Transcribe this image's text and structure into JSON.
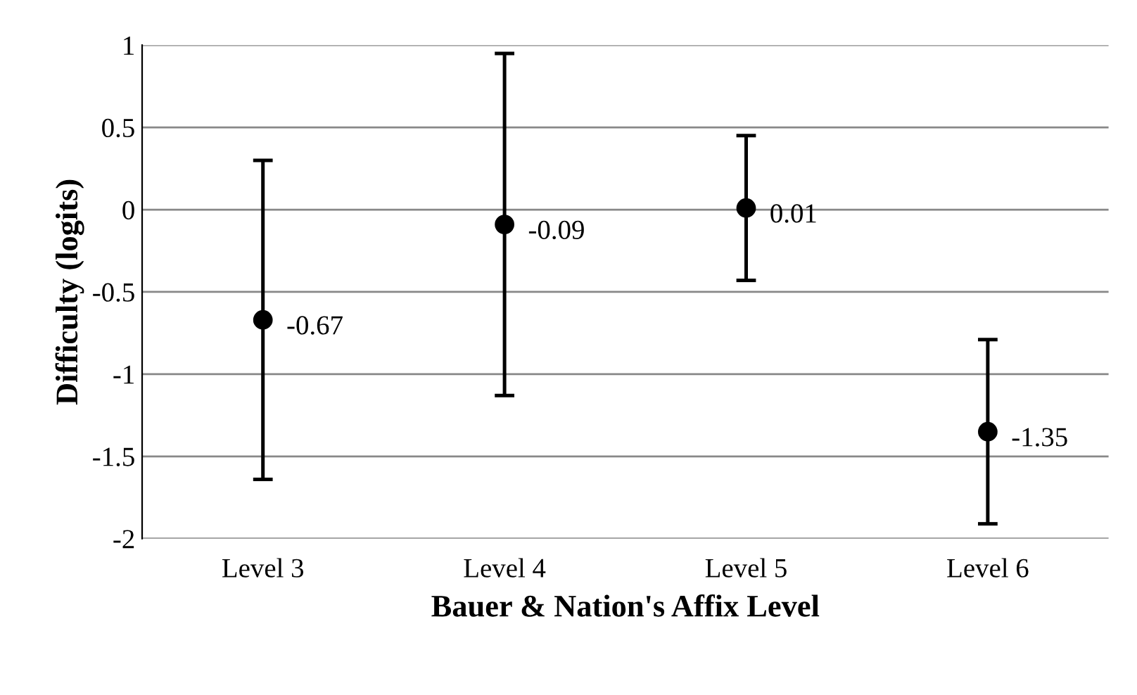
{
  "chart_data": {
    "type": "scatter",
    "xlabel": "Bauer & Nation's Affix Level",
    "ylabel": "Difficulty (logits)",
    "categories": [
      "Level 3",
      "Level 4",
      "Level 5",
      "Level 6"
    ],
    "values": [
      -0.67,
      -0.09,
      0.01,
      -1.35
    ],
    "errors": [
      0.97,
      1.04,
      0.44,
      0.56
    ],
    "color": "#000000",
    "marker": "circle",
    "data_labels": true,
    "ylim": [
      -2,
      1
    ],
    "yticks": [
      -2,
      -1.5,
      -1,
      -0.5,
      0,
      0.5,
      1
    ],
    "grid": "y",
    "legend": false
  }
}
